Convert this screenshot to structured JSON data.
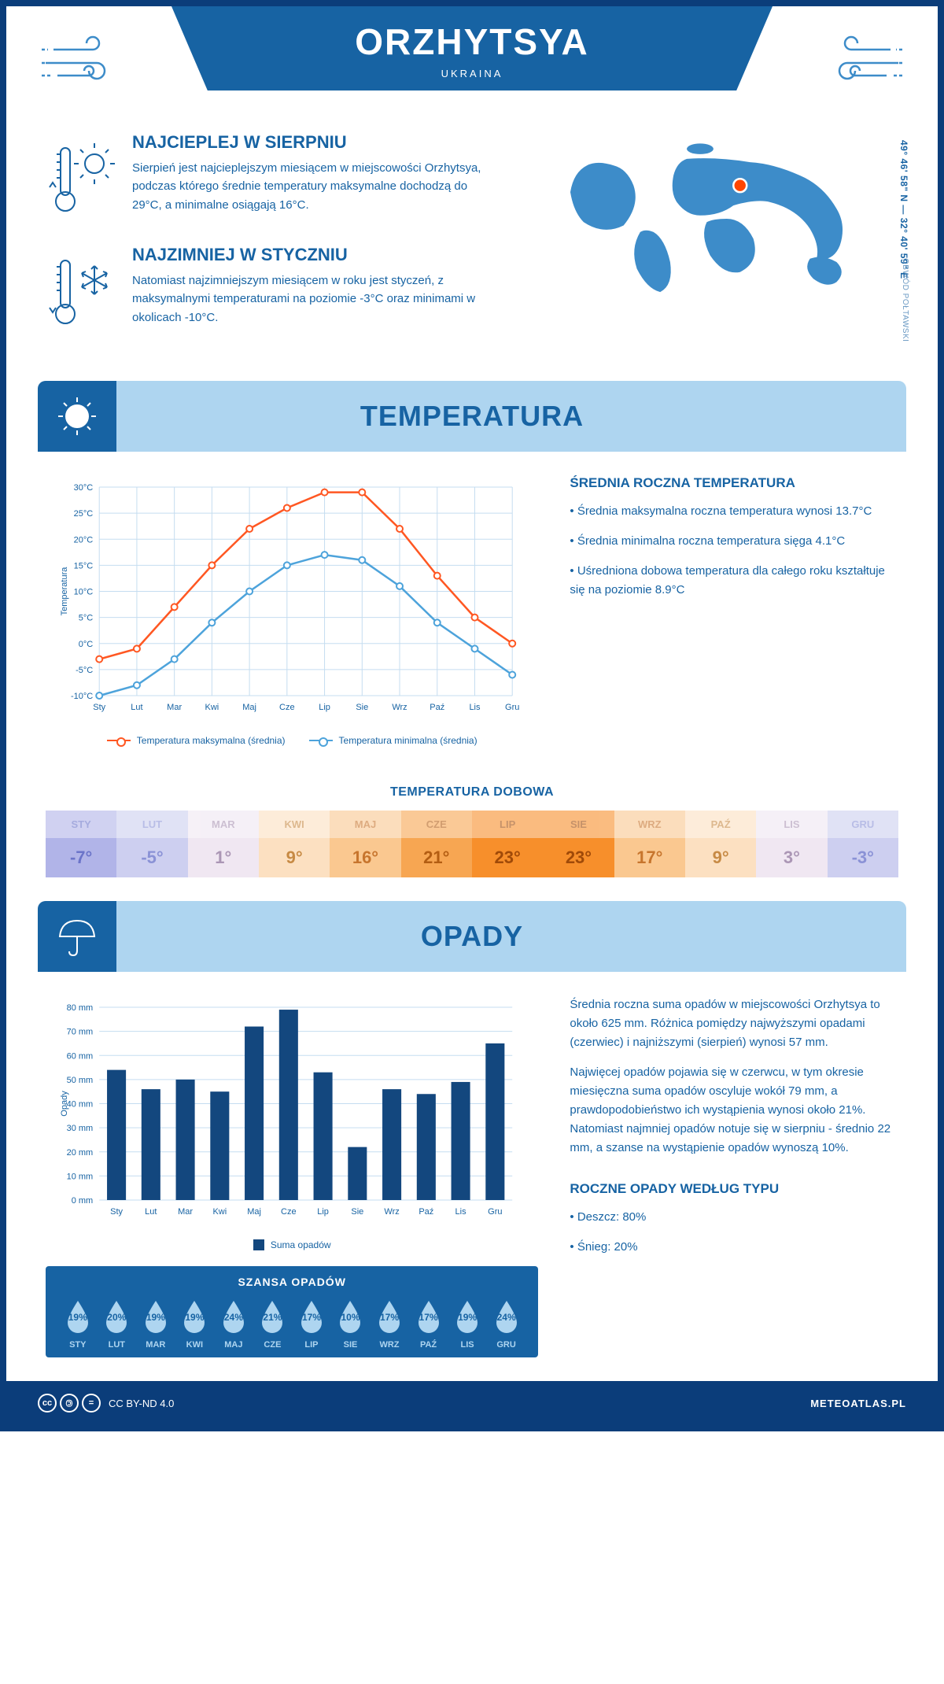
{
  "header": {
    "title": "ORZHYTSYA",
    "subtitle": "UKRAINA",
    "coords": "49° 46' 58\" N — 32° 40' 59\" E",
    "region": "OBWÓD POŁTAWSKI"
  },
  "intro": {
    "hot": {
      "title": "NAJCIEPLEJ W SIERPNIU",
      "text": "Sierpień jest najcieplejszym miesiącem w miejscowości Orzhytsya, podczas którego średnie temperatury maksymalne dochodzą do 29°C, a minimalne osiągają 16°C."
    },
    "cold": {
      "title": "NAJZIMNIEJ W STYCZNIU",
      "text": "Natomiast najzimniejszym miesiącem w roku jest styczeń, z maksymalnymi temperaturami na poziomie -3°C oraz minimami w okolicach -10°C."
    }
  },
  "temperature": {
    "section_title": "TEMPERATURA",
    "info_title": "ŚREDNIA ROCZNA TEMPERATURA",
    "bullets": [
      "• Średnia maksymalna roczna temperatura wynosi 13.7°C",
      "• Średnia minimalna roczna temperatura sięga 4.1°C",
      "• Uśredniona dobowa temperatura dla całego roku kształtuje się na poziomie 8.9°C"
    ],
    "chart": {
      "ylabel": "Temperatura",
      "months_short": [
        "Sty",
        "Lut",
        "Mar",
        "Kwi",
        "Maj",
        "Cze",
        "Lip",
        "Sie",
        "Wrz",
        "Paź",
        "Lis",
        "Gru"
      ],
      "ylim": [
        -10,
        30
      ],
      "ytick_step": 5,
      "max_values": [
        -3,
        -1,
        7,
        15,
        22,
        26,
        29,
        29,
        22,
        13,
        5,
        0
      ],
      "min_values": [
        -10,
        -8,
        -3,
        4,
        10,
        15,
        17,
        16,
        11,
        4,
        -1,
        -6
      ],
      "max_color": "#ff5722",
      "min_color": "#4da3db",
      "grid_color": "#c5ddf0",
      "legend": {
        "max": "Temperatura maksymalna (średnia)",
        "min": "Temperatura minimalna (średnia)"
      }
    },
    "daily_title": "TEMPERATURA DOBOWA",
    "daily": {
      "months": [
        "STY",
        "LUT",
        "MAR",
        "KWI",
        "MAJ",
        "CZE",
        "LIP",
        "SIE",
        "WRZ",
        "PAŹ",
        "LIS",
        "GRU"
      ],
      "values": [
        "-7°",
        "-5°",
        "1°",
        "9°",
        "16°",
        "21°",
        "23°",
        "23°",
        "17°",
        "9°",
        "3°",
        "-3°"
      ],
      "bg_colors": [
        "#b1b4e8",
        "#cdcff0",
        "#f0e7f2",
        "#fce0c1",
        "#fac890",
        "#f7a652",
        "#f78f2b",
        "#f78f2b",
        "#fac890",
        "#fce0c1",
        "#f0e7f2",
        "#cdcff0"
      ],
      "text_colors": [
        "#6b74c9",
        "#8a92d6",
        "#ab96b5",
        "#c78a44",
        "#c7752d",
        "#b35d12",
        "#a04a08",
        "#a04a08",
        "#c7752d",
        "#c78a44",
        "#ab96b5",
        "#8a92d6"
      ]
    }
  },
  "precipitation": {
    "section_title": "OPADY",
    "chart": {
      "ylabel": "Opady",
      "months_short": [
        "Sty",
        "Lut",
        "Mar",
        "Kwi",
        "Maj",
        "Cze",
        "Lip",
        "Sie",
        "Wrz",
        "Paź",
        "Lis",
        "Gru"
      ],
      "values_mm": [
        54,
        46,
        50,
        45,
        72,
        79,
        53,
        22,
        46,
        44,
        49,
        65
      ],
      "ylim": [
        0,
        80
      ],
      "ytick_step": 10,
      "bar_color": "#13477e",
      "grid_color": "#c5ddf0",
      "legend": "Suma opadów"
    },
    "info": [
      "Średnia roczna suma opadów w miejscowości Orzhytsya to około 625 mm. Różnica pomiędzy najwyższymi opadami (czerwiec) i najniższymi (sierpień) wynosi 57 mm.",
      "Najwięcej opadów pojawia się w czerwcu, w tym okresie miesięczna suma opadów oscyluje wokół 79 mm, a prawdopodobieństwo ich wystąpienia wynosi około 21%. Natomiast najmniej opadów notuje się w sierpniu - średnio 22 mm, a szanse na wystąpienie opadów wynoszą 10%."
    ],
    "chance": {
      "title": "SZANSA OPADÓW",
      "months": [
        "STY",
        "LUT",
        "MAR",
        "KWI",
        "MAJ",
        "CZE",
        "LIP",
        "SIE",
        "WRZ",
        "PAŹ",
        "LIS",
        "GRU"
      ],
      "values": [
        "19%",
        "20%",
        "19%",
        "19%",
        "24%",
        "21%",
        "17%",
        "10%",
        "17%",
        "17%",
        "19%",
        "24%"
      ]
    },
    "type_title": "ROCZNE OPADY WEDŁUG TYPU",
    "type_bullets": [
      "• Deszcz: 80%",
      "• Śnieg: 20%"
    ]
  },
  "footer": {
    "license": "CC BY-ND 4.0",
    "site": "METEOATLAS.PL"
  }
}
